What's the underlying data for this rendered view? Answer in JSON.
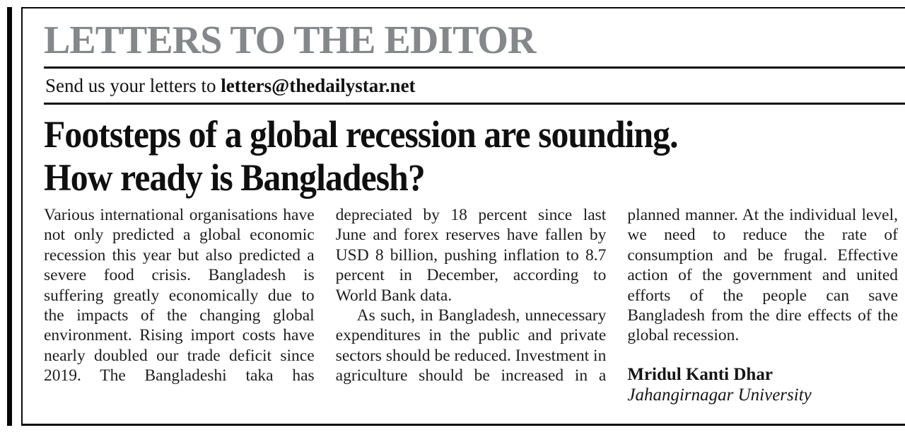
{
  "masthead": {
    "section_title": "LETTERS TO THE EDITOR",
    "submit_line": {
      "prefix": "Send us your letters to ",
      "email": "letters@thedailystar.net"
    }
  },
  "article": {
    "headline": "Footsteps of a global recession are sounding. How ready is Bangladesh?",
    "headline_lines": [
      "Footsteps of a global recession are sounding.",
      "How ready is Bangladesh?"
    ],
    "columns": [
      {
        "paragraphs": [
          "Various international organisations have not only predicted a global economic recession this year but also predicted a severe food crisis. Bangladesh is suffering greatly economically due to the impacts of the changing global environment. Rising import costs have nearly doubled our trade deficit since 2019. The Bangladeshi taka has"
        ]
      },
      {
        "paragraphs": [
          "depreciated by 18 percent since last June and forex reserves have fallen by USD 8 billion, pushing inflation to 8.7 percent in December, according to World Bank data.",
          "As such, in Bangladesh, unnecessary expenditures in the public and private sectors should be reduced. Investment in agriculture should be increased in a"
        ]
      },
      {
        "paragraphs": [
          "planned manner. At the individual level, we need to reduce the rate of consumption and be frugal. Effective action of the government and united efforts of the people can save Bangladesh from the dire effects of the global recession."
        ]
      }
    ],
    "signature": {
      "name": "Mridul Kanti Dhar",
      "affiliation": "Jahangirnagar University"
    }
  },
  "colors": {
    "section_title_gray": "#85888b",
    "ink_black": "#0d0d0d",
    "body_text": "#1d1d1d"
  }
}
